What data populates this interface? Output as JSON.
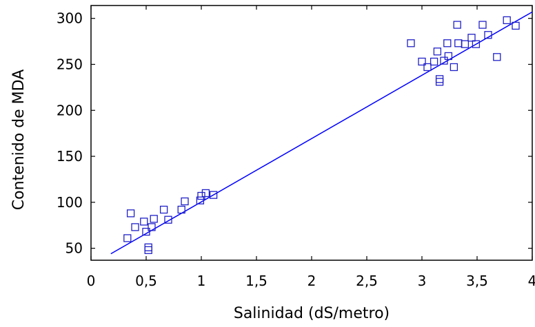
{
  "chart_data": {
    "type": "scatter",
    "title": "",
    "xlabel": "Salinidad (dS/metro)",
    "ylabel": "Contenido de MDA",
    "xlim": [
      0,
      4
    ],
    "ylim": [
      37,
      314
    ],
    "grid": false,
    "legend": "none",
    "x_ticks": [
      0,
      0.5,
      1,
      1.5,
      2,
      2.5,
      3,
      3.5,
      4
    ],
    "x_tick_labels": [
      "0",
      "0,5",
      "1",
      "1,5",
      "2",
      "2,5",
      "3",
      "3,5",
      "4"
    ],
    "y_ticks": [
      50,
      100,
      150,
      200,
      250,
      300
    ],
    "y_tick_labels": [
      "50",
      "100",
      "150",
      "200",
      "250",
      "300"
    ],
    "colors": {
      "markers": "#2020c8",
      "fit_line": "#0000ff",
      "frame": "#000000"
    },
    "series": [
      {
        "marker": "open-square",
        "points": [
          [
            0.33,
            61
          ],
          [
            0.36,
            88
          ],
          [
            0.4,
            73
          ],
          [
            0.48,
            79
          ],
          [
            0.5,
            68
          ],
          [
            0.52,
            51
          ],
          [
            0.52,
            48
          ],
          [
            0.55,
            73
          ],
          [
            0.57,
            82
          ],
          [
            0.66,
            92
          ],
          [
            0.7,
            81
          ],
          [
            0.82,
            92
          ],
          [
            0.85,
            101
          ],
          [
            0.99,
            102
          ],
          [
            1.0,
            107
          ],
          [
            1.04,
            110
          ],
          [
            1.11,
            108
          ],
          [
            2.9,
            273
          ],
          [
            3.0,
            253
          ],
          [
            3.05,
            247
          ],
          [
            3.11,
            253
          ],
          [
            3.14,
            264
          ],
          [
            3.16,
            234
          ],
          [
            3.16,
            231
          ],
          [
            3.2,
            254
          ],
          [
            3.23,
            273
          ],
          [
            3.24,
            259
          ],
          [
            3.29,
            247
          ],
          [
            3.32,
            293
          ],
          [
            3.33,
            273
          ],
          [
            3.39,
            272
          ],
          [
            3.45,
            279
          ],
          [
            3.49,
            272
          ],
          [
            3.55,
            293
          ],
          [
            3.6,
            282
          ],
          [
            3.68,
            258
          ],
          [
            3.77,
            298
          ],
          [
            3.85,
            292
          ]
        ]
      }
    ],
    "fit_line": {
      "x": [
        0.18,
        4.0
      ],
      "y": [
        44,
        307
      ]
    }
  }
}
